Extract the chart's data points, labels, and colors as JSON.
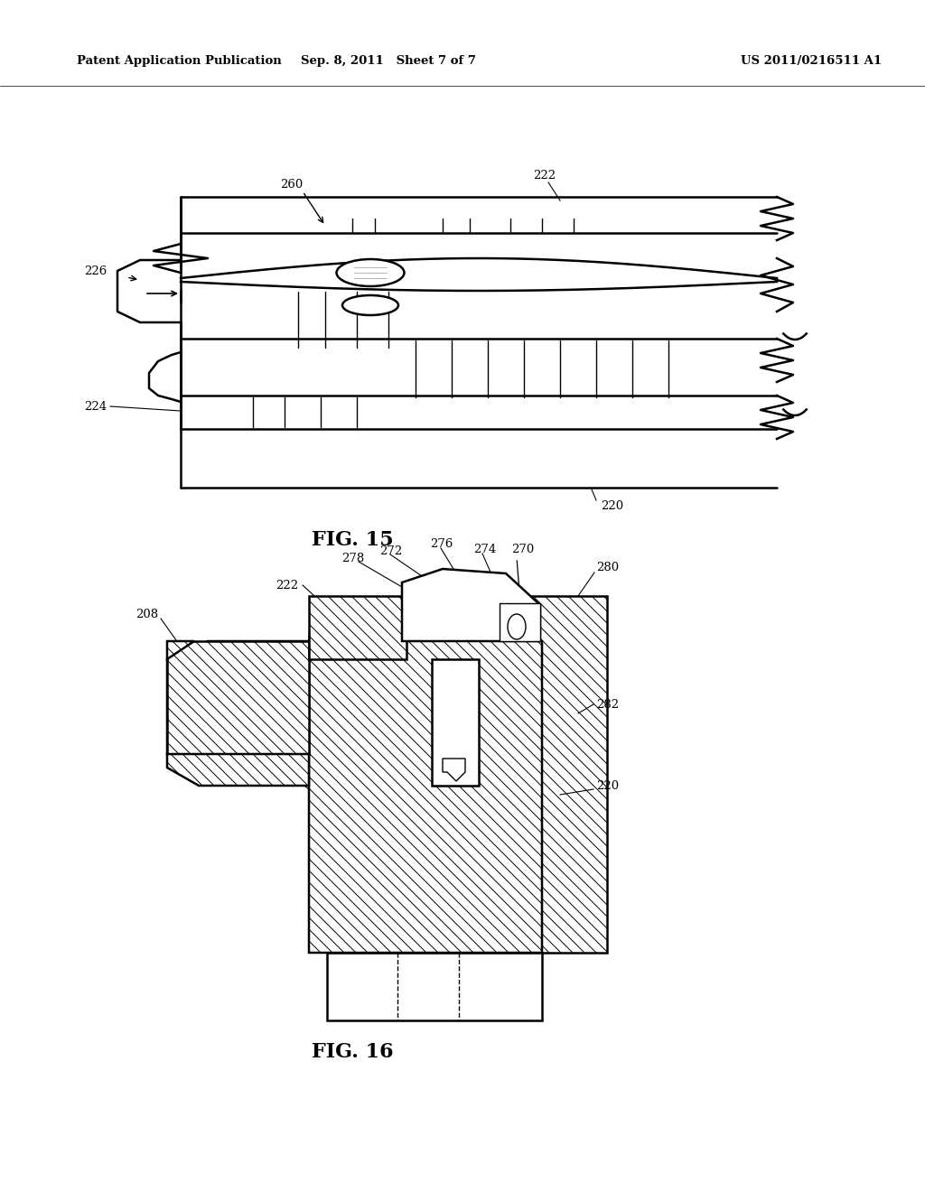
{
  "background_color": "#ffffff",
  "header_left": "Patent Application Publication",
  "header_center": "Sep. 8, 2011   Sheet 7 of 7",
  "header_right": "US 2011/0216511 A1",
  "fig15_label": "FIG. 15",
  "fig16_label": "FIG. 16"
}
